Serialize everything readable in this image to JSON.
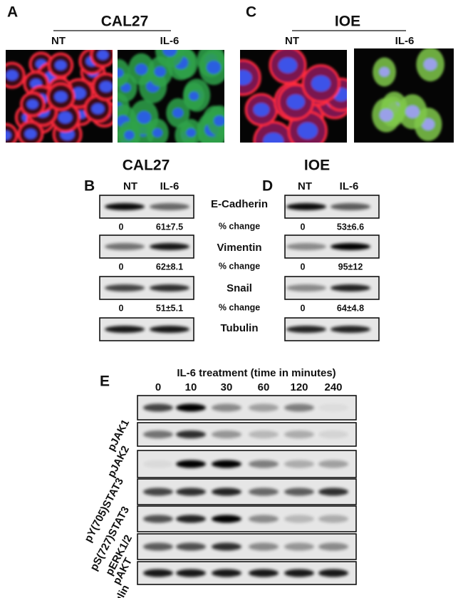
{
  "panels": {
    "A": {
      "label": "A",
      "title": "CAL27",
      "columns": [
        "NT",
        "IL-6"
      ]
    },
    "C": {
      "label": "C",
      "title": "IOE",
      "columns": [
        "NT",
        "IL-6"
      ]
    },
    "B": {
      "label": "B",
      "title": "CAL27",
      "columns": [
        "NT",
        "IL-6"
      ],
      "values": [
        [
          "0",
          "61±7.5"
        ],
        [
          "0",
          "62±8.1"
        ],
        [
          "0",
          "51±5.1"
        ]
      ]
    },
    "D": {
      "label": "D",
      "title": "IOE",
      "columns": [
        "NT",
        "IL-6"
      ],
      "values": [
        [
          "0",
          "53±6.6"
        ],
        [
          "0",
          "95±12"
        ],
        [
          "0",
          "64±4.8"
        ]
      ]
    },
    "row_labels": [
      "E-Cadherin",
      "% change",
      "Vimentin",
      "% change",
      "Snail",
      "% change",
      "Tubulin"
    ],
    "E": {
      "label": "E",
      "title": "IL-6 treatment (time in minutes)",
      "times": [
        "0",
        "10",
        "30",
        "60",
        "120",
        "240"
      ],
      "rows": [
        "pJAK1",
        "pJAK2",
        "pY(705)STAT3",
        "pS(727)STAT3",
        "pERK1/2",
        "pAKT",
        "Tubulin"
      ]
    }
  }
}
